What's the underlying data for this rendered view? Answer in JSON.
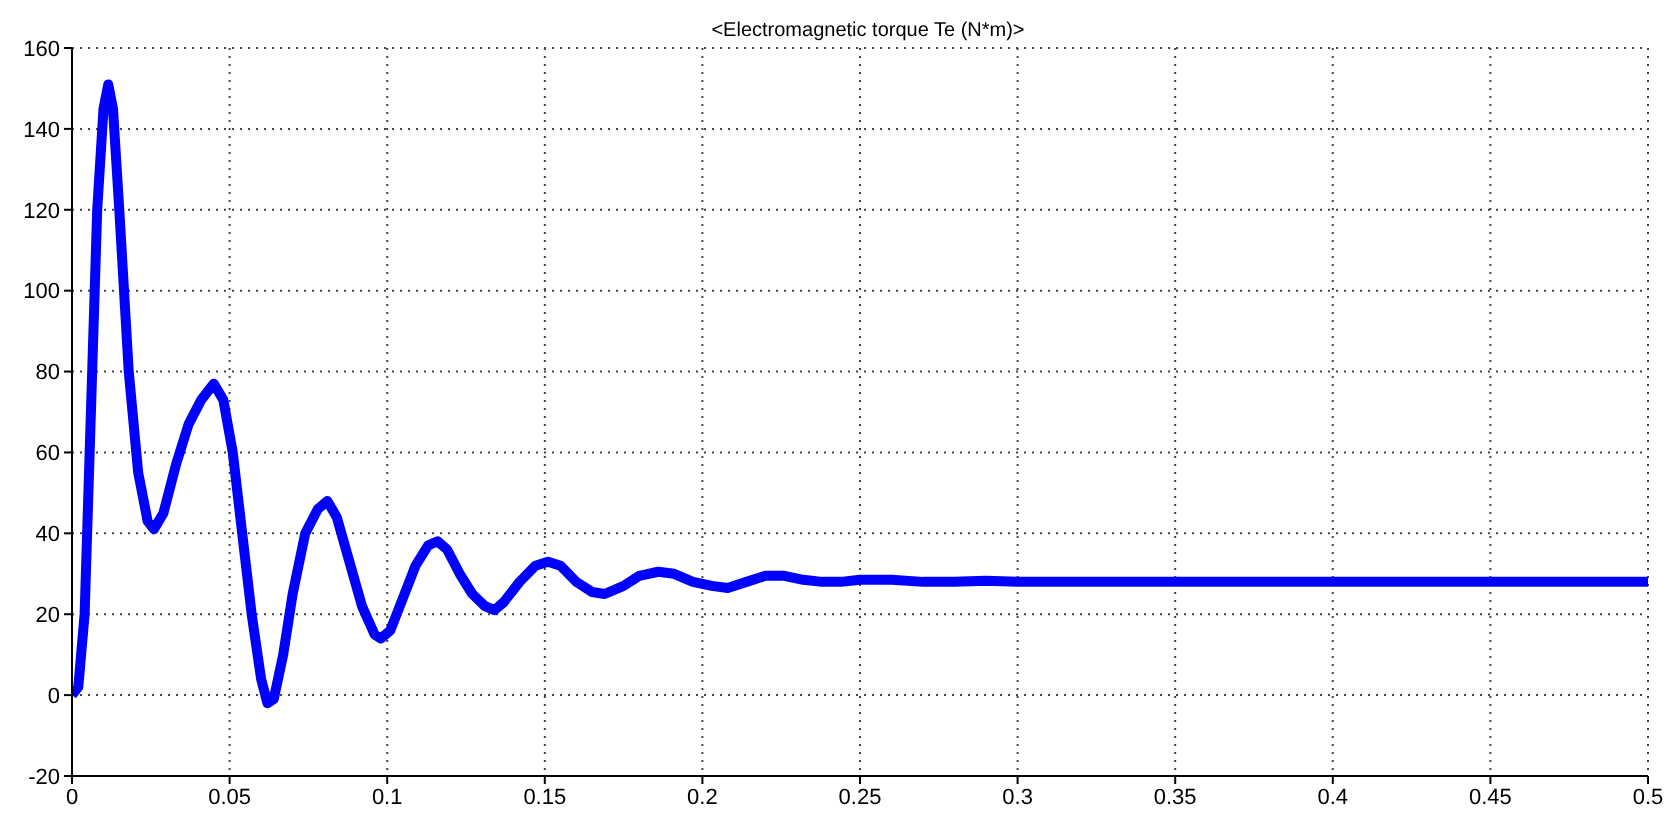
{
  "chart_data": {
    "type": "line",
    "title": "<Electromagnetic torque Te (N*m)>",
    "x": [
      0,
      0.002,
      0.004,
      0.006,
      0.008,
      0.01,
      0.0115,
      0.013,
      0.015,
      0.018,
      0.021,
      0.024,
      0.026,
      0.029,
      0.033,
      0.037,
      0.041,
      0.045,
      0.048,
      0.051,
      0.054,
      0.057,
      0.06,
      0.062,
      0.064,
      0.067,
      0.07,
      0.074,
      0.078,
      0.081,
      0.084,
      0.088,
      0.092,
      0.096,
      0.098,
      0.101,
      0.105,
      0.109,
      0.113,
      0.116,
      0.119,
      0.123,
      0.127,
      0.131,
      0.134,
      0.137,
      0.142,
      0.147,
      0.151,
      0.155,
      0.16,
      0.165,
      0.169,
      0.175,
      0.18,
      0.186,
      0.191,
      0.197,
      0.203,
      0.208,
      0.214,
      0.22,
      0.226,
      0.232,
      0.238,
      0.244,
      0.25,
      0.26,
      0.27,
      0.28,
      0.29,
      0.3,
      0.35,
      0.4,
      0.45,
      0.5
    ],
    "series": [
      {
        "color": "#0000ff",
        "values": [
          0,
          2,
          20,
          70,
          120,
          145,
          151,
          145,
          120,
          80,
          55,
          43,
          41,
          45,
          57,
          67,
          73,
          77,
          73,
          60,
          40,
          20,
          4,
          -2,
          -1,
          10,
          25,
          40,
          46,
          48,
          44,
          33,
          22,
          15,
          14,
          16,
          24,
          32,
          37,
          38,
          36,
          30,
          25,
          22,
          21,
          23,
          28,
          32,
          33,
          32,
          28,
          25.5,
          25,
          27,
          29.5,
          30.5,
          30,
          28,
          27,
          26.5,
          28,
          29.5,
          29.5,
          28.5,
          28,
          28,
          28.5,
          28.5,
          28,
          28,
          28.3,
          28,
          28,
          28,
          28,
          28
        ]
      }
    ],
    "xlim": [
      0,
      0.5
    ],
    "xticks": [
      0,
      0.05,
      0.1,
      0.15,
      0.2,
      0.25,
      0.3,
      0.35,
      0.4,
      0.45,
      0.5
    ],
    "ylim": [
      -20,
      160
    ],
    "yticks": [
      -20,
      0,
      20,
      40,
      60,
      80,
      100,
      120,
      140,
      160
    ],
    "grid": true,
    "marker": "none",
    "line_style": "solid"
  }
}
